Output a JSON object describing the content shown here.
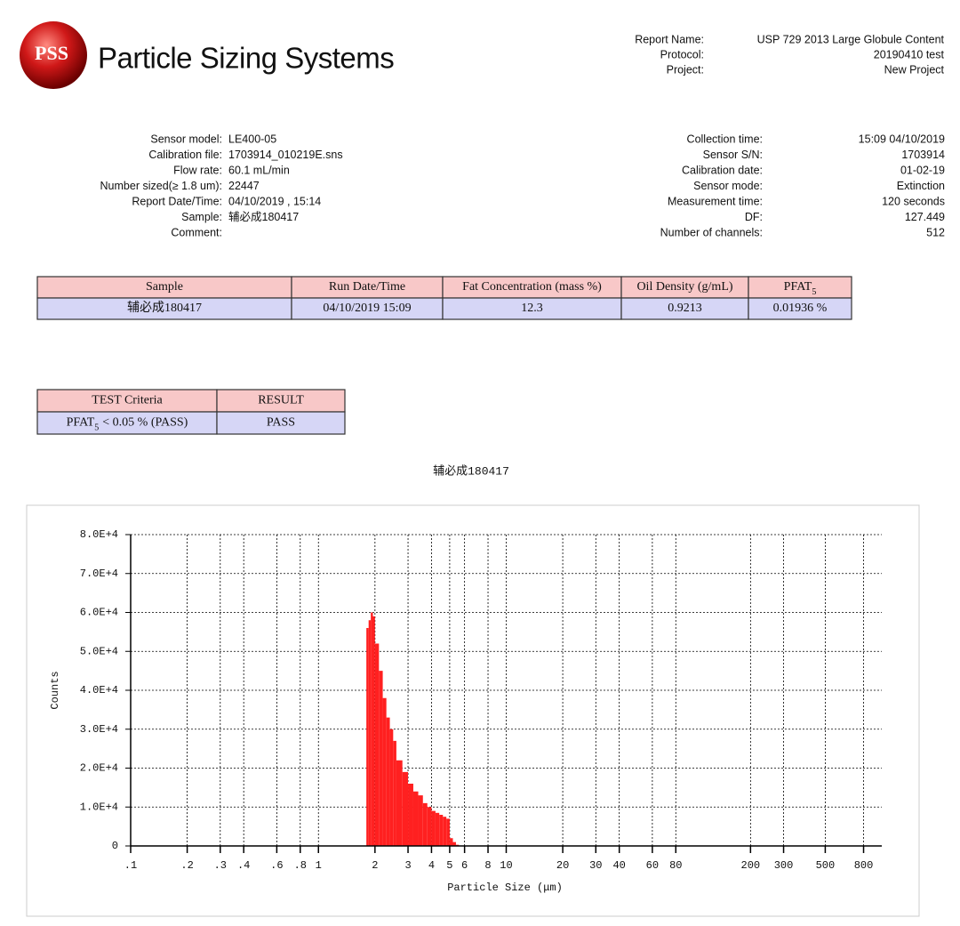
{
  "header": {
    "logo": "PSS",
    "company": "Particle Sizing Systems",
    "report_info": [
      {
        "label": "Report Name:",
        "value": "USP 729 2013 Large Globule Content"
      },
      {
        "label": "Protocol:",
        "value": "20190410 test"
      },
      {
        "label": "Project:",
        "value": "New Project"
      }
    ]
  },
  "sensor_info": [
    {
      "label": "Sensor model:",
      "value": "LE400-05"
    },
    {
      "label": "Calibration file:",
      "value": "1703914_010219E.sns"
    },
    {
      "label": "Flow rate:",
      "value": "60.1 mL/min"
    },
    {
      "label": "Number sized(≥ 1.8 um):",
      "value": "22447"
    },
    {
      "label": "Report Date/Time:",
      "value": "04/10/2019 , 15:14"
    },
    {
      "label": "Sample:",
      "value": "辅必成180417"
    },
    {
      "label": "Comment:"
    }
  ],
  "collection_info": [
    {
      "label": "Collection time:",
      "value": "15:09 04/10/2019"
    },
    {
      "label": "Sensor S/N:",
      "value": "1703914"
    },
    {
      "label": "Calibration date:",
      "value": "01-02-19"
    },
    {
      "label": "Sensor mode:",
      "value": "Extinction"
    },
    {
      "label": "Measurement time:",
      "value": "120 seconds"
    },
    {
      "label": "DF:",
      "value": "127.449"
    },
    {
      "label": "Number of channels:",
      "value": "512"
    }
  ],
  "results_table": {
    "headers": [
      "Sample",
      "Run Date/Time",
      "Fat Concentration (mass %)",
      "Oil Density (g/mL)",
      {
        "text": "PFAT",
        "sub": "5"
      }
    ],
    "rows": [
      [
        "辅必成180417",
        "04/10/2019 15:09",
        "12.3",
        "0.9213",
        "0.01936 %"
      ]
    ]
  },
  "criteria_table": {
    "headers": [
      "TEST Criteria",
      "RESULT"
    ],
    "rows": [
      [
        {
          "text": "PFAT",
          "sub": "5",
          "rest": "< 0.05 % (PASS)"
        },
        "PASS"
      ]
    ]
  },
  "chart_data": {
    "type": "histogram",
    "title": "辅必成180417",
    "x_label": "Particle Size (μm)",
    "y_label": "Counts",
    "color": "#ff2020",
    "log_x": true,
    "grid": true,
    "bins": [
      1.8,
      1.85,
      1.9,
      1.95,
      2.0,
      2.1,
      2.2,
      2.3,
      2.4,
      2.5,
      2.6,
      2.8,
      3.0,
      3.2,
      3.4,
      3.6,
      3.8,
      4.0,
      4.2,
      4.4,
      4.6,
      4.8,
      5.0,
      5.2,
      5.4,
      5.6
    ],
    "values": [
      56000,
      58000,
      60000,
      59000,
      52000,
      45000,
      38000,
      33000,
      30000,
      27000,
      22000,
      19000,
      16000,
      14000,
      13000,
      11000,
      10000,
      9000,
      8500,
      8000,
      7500,
      7000,
      2000,
      1000,
      300
    ],
    "xlim": [
      0.1,
      1000
    ],
    "ylim": [
      0,
      80000
    ],
    "xticks": [
      {
        "value": 0.1,
        "label": ".1"
      },
      {
        "value": 0.2,
        "label": ".2"
      },
      {
        "value": 0.3,
        "label": ".3"
      },
      {
        "value": 0.4,
        "label": ".4"
      },
      {
        "value": 0.6,
        "label": ".6"
      },
      {
        "value": 0.8,
        "label": ".8"
      },
      1,
      2,
      3,
      4,
      5,
      6,
      8,
      10,
      20,
      30,
      40,
      60,
      80,
      200,
      300,
      500,
      800
    ],
    "yticks": [
      0,
      {
        "value": 10000,
        "label": "1.0E+4"
      },
      {
        "value": 20000,
        "label": "2.0E+4"
      },
      {
        "value": 30000,
        "label": "3.0E+4"
      },
      {
        "value": 40000,
        "label": "4.0E+4"
      },
      {
        "value": 50000,
        "label": "5.0E+4"
      },
      {
        "value": 60000,
        "label": "6.0E+4"
      },
      {
        "value": 70000,
        "label": "7.0E+4"
      },
      {
        "value": 80000,
        "label": "8.0E+4"
      }
    ]
  }
}
